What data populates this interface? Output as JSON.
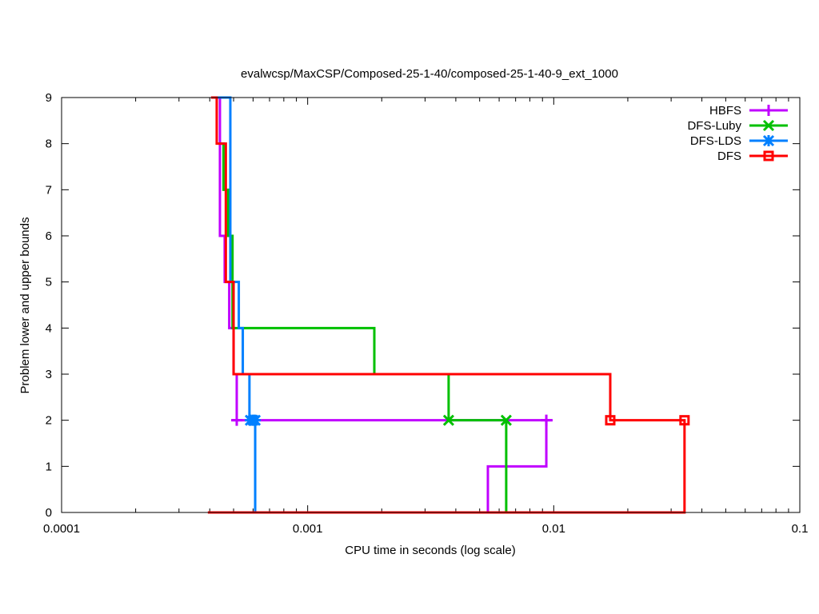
{
  "chart_data": {
    "type": "line",
    "title": "evalwcsp/MaxCSP/Composed-25-1-40/composed-25-1-40-9_ext_1000",
    "xlabel": "CPU time in seconds (log scale)",
    "ylabel": "Problem lower and upper bounds",
    "xscale": "log",
    "xlim": [
      0.0001,
      0.1
    ],
    "ylim": [
      0,
      9
    ],
    "xticks": [
      "0.0001",
      "0.001",
      "0.01",
      "0.1"
    ],
    "xtick_values": [
      0.0001,
      0.001,
      0.01,
      0.1
    ],
    "yticks": [
      "0",
      "1",
      "2",
      "3",
      "4",
      "5",
      "6",
      "7",
      "8",
      "9"
    ],
    "legend_position": "top-right",
    "series": [
      {
        "name": "HBFS",
        "color": "#c000ff",
        "marker": "plus",
        "paths": [
          [
            [
              0.00041,
              9
            ],
            [
              0.00044,
              9
            ],
            [
              0.00044,
              6
            ],
            [
              0.00046,
              6
            ],
            [
              0.00046,
              5
            ],
            [
              0.00048,
              5
            ],
            [
              0.00048,
              4
            ],
            [
              0.0005,
              4
            ],
            [
              0.0005,
              3
            ],
            [
              0.000515,
              3
            ],
            [
              0.000515,
              1.9
            ]
          ],
          [
            [
              0.000493,
              2
            ],
            [
              0.0099,
              2
            ]
          ],
          [
            [
              0.00933,
              2
            ],
            [
              0.00933,
              1
            ],
            [
              0.0054,
              1
            ],
            [
              0.0054,
              0
            ]
          ]
        ],
        "markers": [
          [
            0.000515,
            2
          ],
          [
            0.00933,
            2
          ]
        ]
      },
      {
        "name": "DFS-Luby",
        "color": "#00c000",
        "marker": "cross",
        "paths": [
          [
            [
              0.000435,
              8
            ],
            [
              0.000455,
              8
            ],
            [
              0.000455,
              7
            ],
            [
              0.000475,
              7
            ],
            [
              0.000475,
              6
            ],
            [
              0.000495,
              6
            ],
            [
              0.000495,
              4
            ],
            [
              0.001866,
              4
            ],
            [
              0.001866,
              3
            ],
            [
              0.00374,
              3
            ],
            [
              0.00374,
              2
            ],
            [
              0.00641,
              2
            ],
            [
              0.00641,
              0
            ]
          ]
        ],
        "markers": [
          [
            0.00374,
            2
          ],
          [
            0.00641,
            2
          ]
        ]
      },
      {
        "name": "DFS-LDS",
        "color": "#0080ff",
        "marker": "star",
        "paths": [
          [
            [
              0.00043,
              9
            ],
            [
              0.000485,
              9
            ],
            [
              0.000485,
              5
            ],
            [
              0.000525,
              5
            ],
            [
              0.000525,
              4
            ],
            [
              0.000545,
              4
            ],
            [
              0.000545,
              3
            ],
            [
              0.00058,
              3
            ],
            [
              0.00058,
              2
            ],
            [
              0.000612,
              2
            ],
            [
              0.000612,
              0
            ]
          ]
        ],
        "markers": [
          [
            0.000585,
            2
          ],
          [
            0.0006,
            2
          ],
          [
            0.000612,
            2
          ]
        ]
      },
      {
        "name": "DFS",
        "color": "#ff0000",
        "marker": "square",
        "paths": [
          [
            [
              0.000405,
              9
            ],
            [
              0.000427,
              9
            ],
            [
              0.000427,
              8
            ],
            [
              0.000465,
              8
            ],
            [
              0.000465,
              5
            ],
            [
              0.0005,
              5
            ],
            [
              0.0005,
              3
            ],
            [
              0.01697,
              3
            ],
            [
              0.01697,
              2
            ],
            [
              0.034,
              2
            ],
            [
              0.034,
              0
            ],
            [
              0.000393,
              0
            ]
          ]
        ],
        "markers": [
          [
            0.01697,
            2
          ],
          [
            0.034,
            2
          ]
        ]
      }
    ]
  }
}
